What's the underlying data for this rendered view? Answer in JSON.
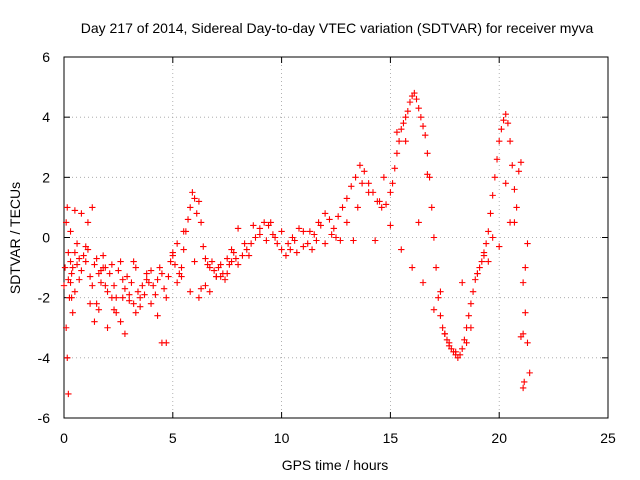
{
  "chart_data": {
    "type": "scatter",
    "title": "Day 217 of 2014, Sidereal Day-to-day VTEC variation (SDTVAR) for receiver myva",
    "xlabel": "GPS time / hours",
    "ylabel": "SDTVAR / TECUs",
    "xlim": [
      0,
      25
    ],
    "ylim": [
      -6,
      6
    ],
    "xticks": [
      0,
      5,
      10,
      15,
      20,
      25
    ],
    "yticks": [
      -6,
      -4,
      -2,
      0,
      2,
      4,
      6
    ],
    "grid": true,
    "marker": "+",
    "series_color": "#ff0000",
    "series": [
      {
        "name": "SDTVAR",
        "x": [
          0.0,
          0.1,
          0.15,
          0.2,
          0.25,
          0.3,
          0.35,
          0.4,
          0.5,
          0.6,
          0.7,
          0.8,
          0.9,
          1.0,
          1.1,
          1.2,
          1.3,
          1.4,
          1.5,
          1.6,
          1.7,
          1.8,
          1.9,
          2.0,
          2.1,
          2.2,
          2.3,
          2.4,
          2.5,
          2.6,
          2.7,
          2.8,
          2.9,
          3.0,
          3.1,
          3.2,
          3.3,
          3.4,
          3.5,
          3.6,
          3.7,
          3.8,
          3.9,
          4.0,
          4.1,
          4.2,
          4.3,
          4.4,
          4.5,
          4.6,
          4.7,
          4.8,
          4.9,
          5.0,
          5.1,
          5.2,
          5.3,
          5.4,
          5.5,
          5.6,
          5.7,
          5.8,
          5.9,
          6.0,
          6.1,
          6.2,
          6.3,
          6.4,
          6.5,
          6.6,
          6.7,
          6.8,
          6.9,
          7.0,
          7.1,
          7.2,
          7.3,
          7.4,
          7.5,
          7.6,
          7.7,
          7.8,
          7.9,
          8.0,
          8.2,
          8.4,
          8.6,
          8.8,
          9.0,
          9.2,
          9.4,
          9.6,
          9.8,
          10.0,
          10.2,
          10.4,
          10.6,
          10.8,
          11.0,
          11.2,
          11.4,
          11.6,
          11.8,
          12.0,
          12.2,
          12.4,
          12.6,
          12.8,
          13.0,
          13.2,
          13.4,
          13.6,
          13.8,
          14.0,
          14.2,
          14.4,
          14.6,
          14.8,
          15.0,
          15.1,
          15.2,
          15.3,
          15.4,
          15.5,
          15.6,
          15.7,
          15.8,
          15.9,
          16.0,
          16.1,
          16.2,
          16.3,
          16.4,
          16.5,
          16.6,
          16.7,
          16.8,
          16.9,
          17.0,
          17.1,
          17.2,
          17.3,
          17.4,
          17.5,
          17.6,
          17.7,
          17.8,
          17.9,
          18.0,
          18.1,
          18.2,
          18.3,
          18.4,
          18.5,
          18.6,
          18.7,
          18.8,
          18.9,
          19.0,
          19.1,
          19.2,
          19.3,
          19.4,
          19.5,
          19.6,
          19.7,
          19.8,
          19.9,
          20.0,
          20.1,
          20.2,
          20.3,
          20.4,
          20.5,
          20.6,
          20.7,
          20.8,
          20.9,
          21.0,
          21.1,
          21.2,
          21.3,
          21.4,
          0.05,
          0.1,
          0.15,
          0.2,
          0.3,
          0.35,
          0.4,
          0.5,
          0.6,
          0.8,
          1.0,
          1.2,
          1.4,
          1.6,
          1.8,
          2.0,
          2.2,
          2.4,
          2.6,
          2.8,
          3.0,
          3.2,
          3.5,
          4.0,
          4.5,
          5.0,
          5.2,
          5.5,
          6.0,
          6.2,
          6.5,
          7.0,
          7.5,
          8.0,
          8.5,
          9.0,
          9.5,
          10.0,
          10.5,
          11.0,
          11.5,
          12.0,
          12.5,
          13.0,
          13.5,
          14.0,
          14.5,
          15.0,
          15.5,
          16.0,
          16.5,
          17.0,
          17.5,
          18.0,
          18.5,
          19.0,
          19.5,
          20.0,
          20.5,
          21.0,
          21.2,
          0.2,
          0.3,
          0.5,
          0.7,
          1.1,
          1.3,
          1.5,
          1.7,
          1.9,
          2.3,
          2.7,
          3.3,
          3.8,
          4.3,
          4.7,
          5.4,
          5.8,
          6.3,
          6.7,
          7.2,
          7.7,
          8.3,
          8.7,
          9.3,
          9.7,
          10.3,
          10.7,
          11.3,
          11.7,
          12.3,
          12.7,
          13.3,
          13.7,
          14.3,
          14.7,
          15.3,
          15.7,
          16.3,
          16.7,
          17.3,
          17.7,
          18.3,
          18.7,
          19.3,
          19.7,
          20.3,
          20.7,
          21.1,
          21.3,
          21.1,
          21.15
        ],
        "y": [
          -1.6,
          -3.0,
          -4.0,
          -5.2,
          -2.0,
          -0.8,
          -1.2,
          -1.0,
          -0.5,
          -0.9,
          -1.4,
          -1.1,
          -0.6,
          -0.8,
          -0.4,
          -1.3,
          -1.6,
          -0.9,
          -0.7,
          -1.2,
          -1.5,
          -0.6,
          -1.0,
          -1.8,
          -1.2,
          -0.9,
          -1.6,
          -2.0,
          -1.1,
          -0.8,
          -1.4,
          -1.7,
          -1.3,
          -1.9,
          -1.5,
          -2.2,
          -2.5,
          -1.8,
          -2.3,
          -1.6,
          -1.9,
          -1.2,
          -1.5,
          -1.1,
          -1.6,
          -1.9,
          -1.4,
          -1.0,
          -1.2,
          -1.7,
          -2.0,
          -1.3,
          -0.8,
          -0.6,
          -0.9,
          -1.5,
          -1.2,
          -1.0,
          -0.4,
          0.2,
          0.6,
          1.0,
          1.5,
          1.3,
          0.8,
          1.2,
          0.5,
          -0.3,
          -0.7,
          -0.9,
          -1.0,
          -0.8,
          -1.1,
          -1.3,
          -1.0,
          -0.9,
          -1.2,
          -1.4,
          -1.2,
          -0.9,
          -0.8,
          -0.5,
          -0.7,
          -0.9,
          -0.6,
          -0.4,
          -0.2,
          0.0,
          0.3,
          0.5,
          0.4,
          0.1,
          -0.2,
          -0.4,
          -0.6,
          -0.4,
          -0.1,
          0.3,
          0.2,
          -0.2,
          -0.4,
          -0.1,
          0.4,
          0.8,
          0.6,
          0.3,
          0.7,
          1.0,
          1.3,
          1.7,
          2.0,
          2.4,
          2.2,
          1.8,
          1.5,
          1.2,
          1.0,
          1.1,
          1.5,
          1.8,
          2.3,
          2.8,
          3.2,
          3.6,
          3.8,
          4.0,
          4.2,
          4.5,
          4.7,
          4.8,
          4.6,
          4.3,
          4.0,
          3.7,
          3.4,
          2.8,
          2.0,
          1.0,
          0.0,
          -1.0,
          -2.0,
          -2.6,
          -3.0,
          -3.2,
          -3.4,
          -3.6,
          -3.7,
          -3.8,
          -3.9,
          -4.0,
          -3.9,
          -3.7,
          -3.4,
          -3.0,
          -2.6,
          -2.2,
          -1.8,
          -1.4,
          -1.2,
          -1.0,
          -0.8,
          -0.5,
          -0.2,
          0.2,
          0.8,
          1.4,
          2.0,
          2.6,
          3.2,
          3.6,
          3.9,
          4.1,
          3.8,
          3.2,
          2.4,
          1.6,
          1.0,
          2.2,
          2.5,
          -1.5,
          -2.5,
          -3.5,
          -4.5,
          -1.0,
          0.5,
          1.0,
          -0.5,
          -1.5,
          -2.0,
          -2.5,
          -1.8,
          -0.2,
          0.8,
          -0.3,
          -2.2,
          -2.8,
          -2.4,
          -1.0,
          -3.0,
          -2.0,
          -2.5,
          -2.8,
          -3.2,
          -2.1,
          -0.8,
          -2.0,
          -2.2,
          -3.5,
          -0.5,
          -0.2,
          0.2,
          -0.8,
          -2.0,
          -1.6,
          -1.3,
          -0.7,
          0.3,
          -0.6,
          0.1,
          0.5,
          0.2,
          0.0,
          -0.3,
          0.1,
          -0.2,
          0.0,
          0.5,
          1.0,
          1.5,
          1.2,
          0.4,
          -0.4,
          -1.0,
          -1.5,
          -2.4,
          -3.2,
          -3.8,
          -3.5,
          -1.2,
          -0.8,
          -0.3,
          0.5,
          -3.3,
          -1.0,
          -1.4,
          0.2,
          0.9,
          -0.7,
          0.5,
          1.0,
          -2.2,
          -1.1,
          -1.6,
          -2.4,
          -2.0,
          -1.0,
          -1.4,
          -2.6,
          -3.5,
          -1.3,
          -1.8,
          -1.7,
          -1.8,
          -1.3,
          -0.4,
          -0.2,
          0.4,
          -0.1,
          0.0,
          -0.2,
          -0.5,
          0.2,
          0.5,
          0.1,
          -0.1,
          -0.1,
          1.8,
          -0.1,
          2.0,
          3.5,
          3.2,
          0.5,
          2.1,
          -1.8,
          -3.5,
          -1.5,
          -3.0,
          -0.6,
          0.0,
          1.8,
          0.5,
          -3.2,
          -0.2,
          -5.0,
          -4.8
        ]
      }
    ]
  }
}
